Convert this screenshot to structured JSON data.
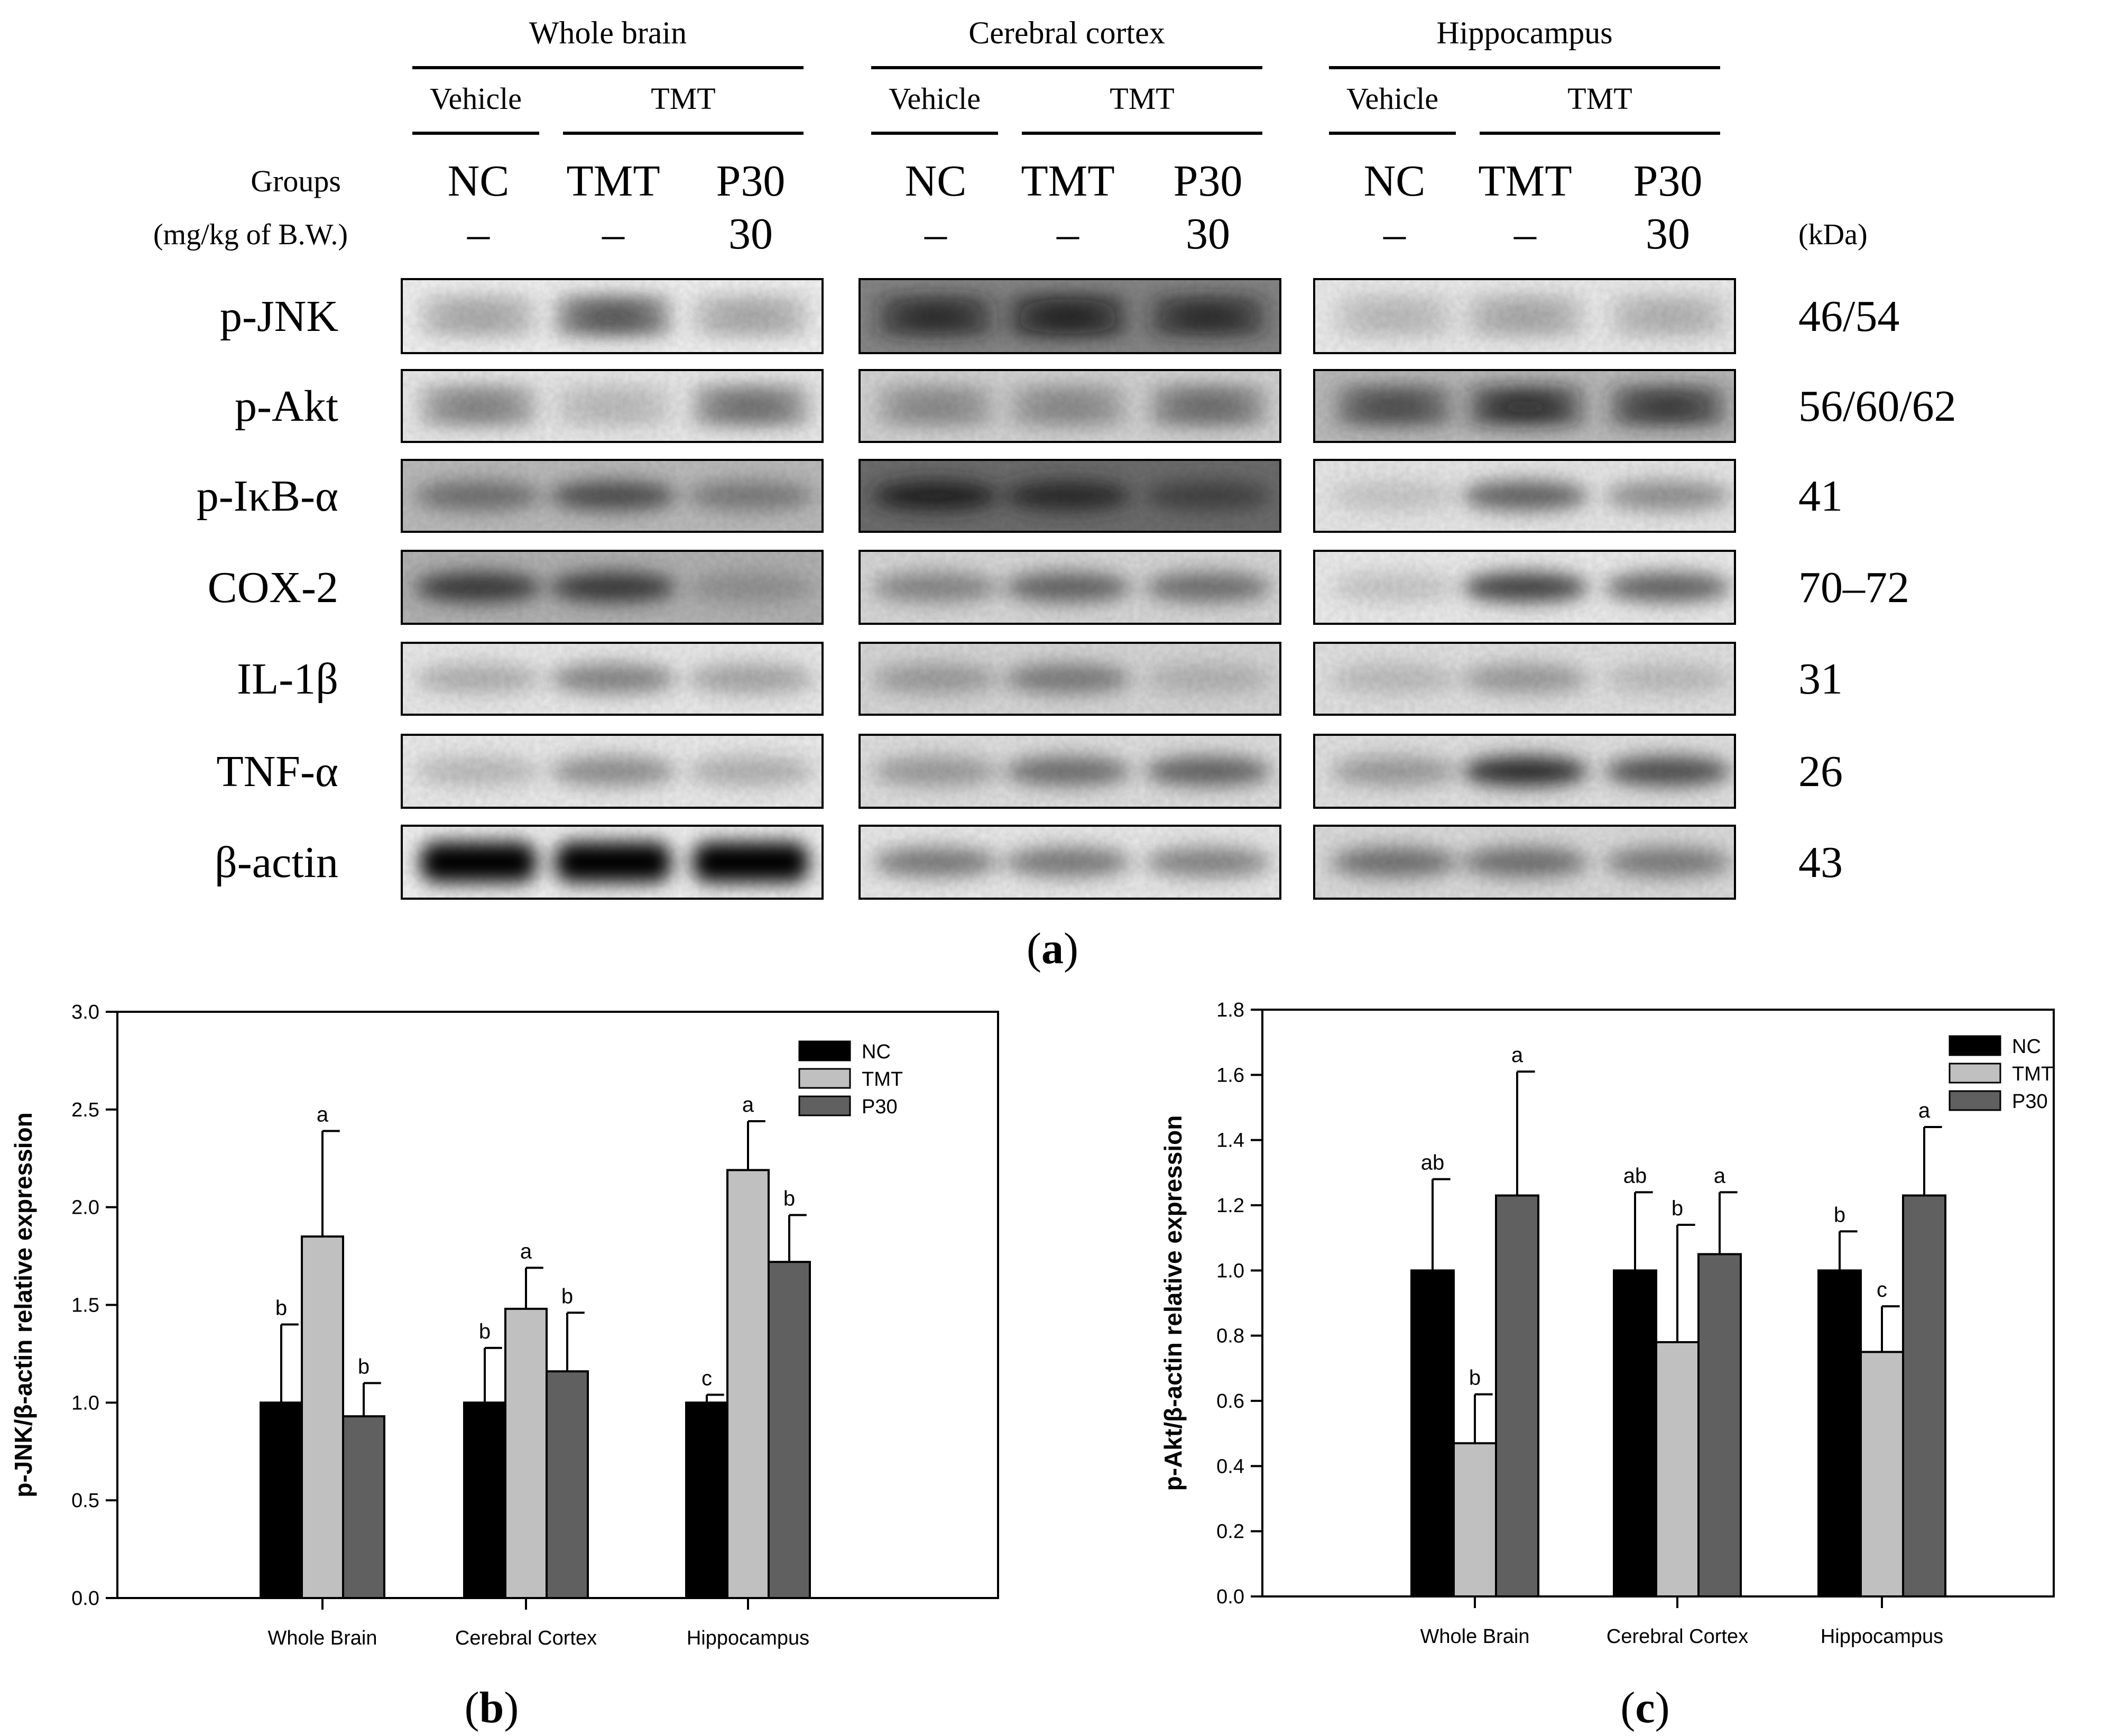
{
  "panel_a": {
    "regions": [
      {
        "title": "Whole brain",
        "vehicle": "Vehicle",
        "tmt": "TMT"
      },
      {
        "title": "Cerebral cortex",
        "vehicle": "Vehicle",
        "tmt": "TMT"
      },
      {
        "title": "Hippocampus",
        "vehicle": "Vehicle",
        "tmt": "TMT"
      }
    ],
    "groups_label": "Groups",
    "dose_label": "(mg/kg of B.W.)",
    "kda_label": "(kDa)",
    "groups": [
      "NC",
      "TMT",
      "P30"
    ],
    "doses": [
      "–",
      "–",
      "30"
    ],
    "proteins": [
      {
        "name": "p-JNK",
        "kda": "46/54"
      },
      {
        "name": "p-Akt",
        "kda": "56/60/62"
      },
      {
        "name": "p-IκB-α",
        "kda": "41"
      },
      {
        "name": "COX-2",
        "kda": "70–72"
      },
      {
        "name": "IL-1β",
        "kda": "31"
      },
      {
        "name": "TNF-α",
        "kda": "26"
      },
      {
        "name": "β-actin",
        "kda": "43"
      }
    ],
    "caption_letter": "a"
  },
  "chart_data": [
    {
      "type": "bar",
      "panel_letter": "b",
      "categories": [
        "Whole Brain",
        "Cerebral Cortex",
        "Hippocampus"
      ],
      "series": [
        {
          "name": "NC",
          "values": [
            1.0,
            1.0,
            1.0
          ],
          "errors": [
            0.4,
            0.28,
            0.04
          ],
          "letters": [
            "b",
            "b",
            "c"
          ]
        },
        {
          "name": "TMT",
          "values": [
            1.85,
            1.48,
            2.19
          ],
          "errors": [
            0.54,
            0.21,
            0.25
          ],
          "letters": [
            "a",
            "a",
            "a"
          ]
        },
        {
          "name": "P30",
          "values": [
            0.93,
            1.16,
            1.72
          ],
          "errors": [
            0.17,
            0.3,
            0.24
          ],
          "letters": [
            "b",
            "b",
            "b"
          ]
        }
      ],
      "ylabel": "p-JNK/β-actin relative expression",
      "ylim": [
        0,
        3.0
      ],
      "yticks": [
        "0.0",
        "0.5",
        "1.0",
        "1.5",
        "2.0",
        "2.5",
        "3.0"
      ],
      "legend_position": "top-right",
      "colors": [
        "#000000",
        "#c0c0c0",
        "#606060"
      ]
    },
    {
      "type": "bar",
      "panel_letter": "c",
      "categories": [
        "Whole Brain",
        "Cerebral Cortex",
        "Hippocampus"
      ],
      "series": [
        {
          "name": "NC",
          "values": [
            1.0,
            1.0,
            1.0
          ],
          "errors": [
            0.28,
            0.24,
            0.12
          ],
          "letters": [
            "ab",
            "ab",
            "b"
          ]
        },
        {
          "name": "TMT",
          "values": [
            0.47,
            0.78,
            0.75
          ],
          "errors": [
            0.15,
            0.36,
            0.14
          ],
          "letters": [
            "b",
            "b",
            "c"
          ]
        },
        {
          "name": "P30",
          "values": [
            1.23,
            1.05,
            1.23
          ],
          "errors": [
            0.38,
            0.19,
            0.21
          ],
          "letters": [
            "a",
            "a",
            "a"
          ]
        }
      ],
      "ylabel": "p-Akt/β-actin relative expression",
      "ylim": [
        0,
        1.8
      ],
      "yticks": [
        "0.0",
        "0.2",
        "0.4",
        "0.6",
        "0.8",
        "1.0",
        "1.2",
        "1.4",
        "1.6",
        "1.8"
      ],
      "legend_position": "top-right",
      "colors": [
        "#000000",
        "#c0c0c0",
        "#606060"
      ]
    }
  ]
}
